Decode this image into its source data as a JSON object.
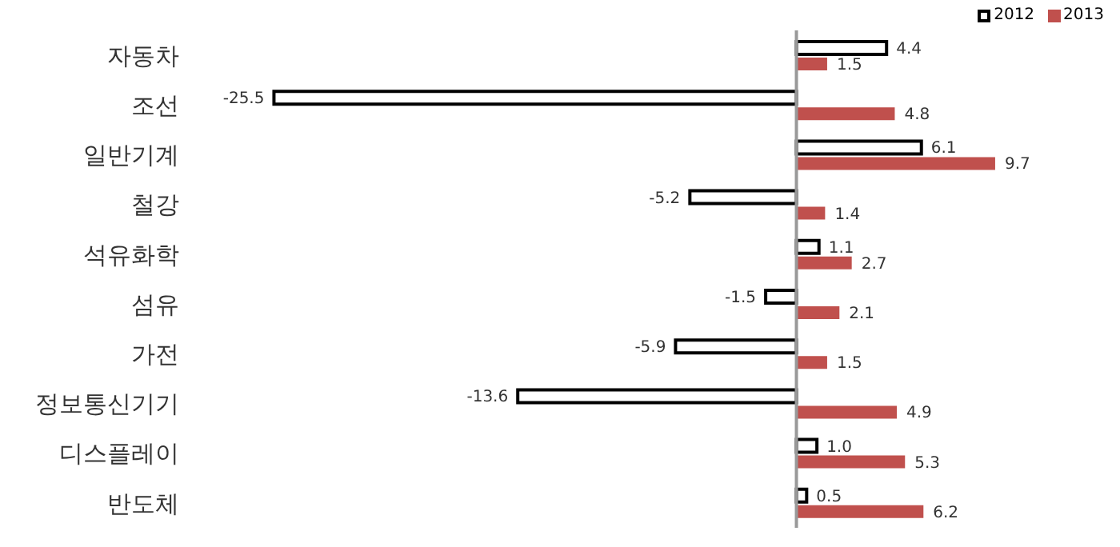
{
  "chart_data": {
    "type": "bar",
    "orientation": "horizontal",
    "categories": [
      "자동차",
      "조선",
      "일반기계",
      "철강",
      "석유화학",
      "섬유",
      "가전",
      "정보통신기기",
      "디스플레이",
      "반도체"
    ],
    "series": [
      {
        "name": "2012",
        "color": "#ffffff",
        "values": [
          4.4,
          -25.5,
          6.1,
          -5.2,
          1.1,
          -1.5,
          -5.9,
          -13.6,
          1.0,
          0.5
        ],
        "value_labels": [
          "4.4",
          "-25.5",
          "6.1",
          "-5.2",
          "1.1",
          "-1.5",
          "-5.9",
          "-13.6",
          "1.0",
          "0.5"
        ]
      },
      {
        "name": "2013",
        "color": "#c0504d",
        "values": [
          1.5,
          4.8,
          9.7,
          1.4,
          2.7,
          2.1,
          1.5,
          4.9,
          5.3,
          6.2
        ],
        "value_labels": [
          "1.5",
          "4.8",
          "9.7",
          "1.4",
          "2.7",
          "2.1",
          "1.5",
          "4.9",
          "5.3",
          "6.2"
        ]
      }
    ],
    "tick_labels": "y",
    "legend": "top right",
    "grid": false
  }
}
